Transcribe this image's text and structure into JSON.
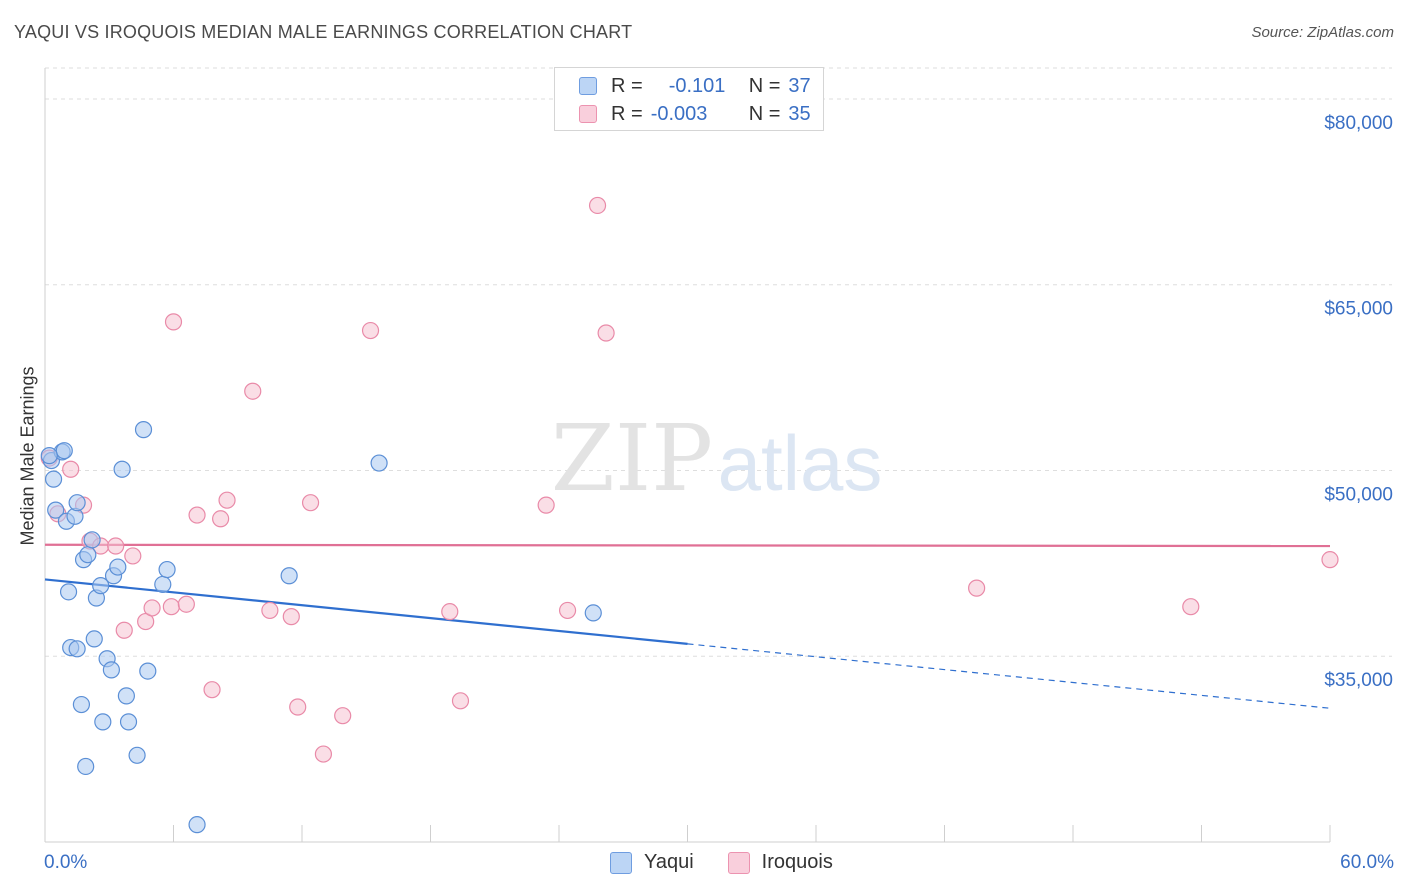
{
  "title": "YAQUI VS IROQUOIS MEDIAN MALE EARNINGS CORRELATION CHART",
  "source": "Source: ZipAtlas.com",
  "watermark": {
    "zip": "ZIP",
    "atlas": "atlas"
  },
  "legend": {
    "r_label": "R =",
    "n_label": "N =",
    "yaqui": {
      "r": "-0.101",
      "n": "37"
    },
    "iroquois": {
      "r": "-0.003",
      "n": "35"
    }
  },
  "bottom_legend": {
    "yaqui": "Yaqui",
    "iroquois": "Iroquois"
  },
  "colors": {
    "yaqui_fill": "#a9c8f0",
    "yaqui_stroke": "#5b8fd6",
    "yaqui_line": "#2f6fcf",
    "iroquois_fill": "#f6c2d2",
    "iroquois_stroke": "#e98aa8",
    "iroquois_line": "#e07095",
    "axis_text": "#3a6fc4"
  },
  "chart_data": {
    "type": "scatter",
    "title": "YAQUI VS IROQUOIS MEDIAN MALE EARNINGS CORRELATION CHART",
    "xlabel": "",
    "ylabel": "Median Male Earnings",
    "xlim": [
      0,
      60
    ],
    "ylim": [
      20000,
      82500
    ],
    "x_tick_labels": [
      "0.0%",
      "60.0%"
    ],
    "y_ticks": [
      35000,
      50000,
      65000,
      80000
    ],
    "y_tick_labels": [
      "$35,000",
      "$50,000",
      "$65,000",
      "$80,000"
    ],
    "grid": true,
    "series": [
      {
        "name": "Yaqui",
        "points": [
          [
            0.3,
            50800
          ],
          [
            0.4,
            49300
          ],
          [
            0.5,
            46800
          ],
          [
            0.8,
            51500
          ],
          [
            0.9,
            51600
          ],
          [
            1.0,
            45900
          ],
          [
            1.1,
            40200
          ],
          [
            1.2,
            35700
          ],
          [
            1.4,
            46300
          ],
          [
            1.5,
            35600
          ],
          [
            1.5,
            47400
          ],
          [
            1.7,
            31100
          ],
          [
            1.8,
            42800
          ],
          [
            1.9,
            26100
          ],
          [
            2.0,
            43200
          ],
          [
            2.2,
            44400
          ],
          [
            2.3,
            36400
          ],
          [
            2.4,
            39700
          ],
          [
            2.6,
            40700
          ],
          [
            2.7,
            29700
          ],
          [
            2.9,
            34800
          ],
          [
            3.1,
            33900
          ],
          [
            3.2,
            41500
          ],
          [
            3.4,
            42200
          ],
          [
            3.6,
            50100
          ],
          [
            3.8,
            31800
          ],
          [
            3.9,
            29700
          ],
          [
            4.3,
            27000
          ],
          [
            4.6,
            53300
          ],
          [
            4.8,
            33800
          ],
          [
            5.5,
            40800
          ],
          [
            5.7,
            42000
          ],
          [
            7.1,
            21400
          ],
          [
            11.4,
            41500
          ],
          [
            15.6,
            50600
          ],
          [
            25.6,
            38500
          ],
          [
            0.2,
            51200
          ]
        ],
        "trend": {
          "x": [
            0,
            30
          ],
          "y": [
            41200,
            36000
          ],
          "dashed_to": [
            60,
            30800
          ]
        }
      },
      {
        "name": "Iroquois",
        "points": [
          [
            0.2,
            51000
          ],
          [
            0.6,
            46500
          ],
          [
            1.2,
            50100
          ],
          [
            1.8,
            47200
          ],
          [
            2.1,
            44300
          ],
          [
            2.6,
            43900
          ],
          [
            3.3,
            43900
          ],
          [
            3.7,
            37100
          ],
          [
            4.1,
            43100
          ],
          [
            4.7,
            37800
          ],
          [
            5.0,
            38900
          ],
          [
            5.9,
            39000
          ],
          [
            6.0,
            62000
          ],
          [
            6.6,
            39200
          ],
          [
            7.1,
            46400
          ],
          [
            7.8,
            32300
          ],
          [
            8.2,
            46100
          ],
          [
            8.5,
            47600
          ],
          [
            9.7,
            56400
          ],
          [
            10.5,
            38700
          ],
          [
            11.5,
            38200
          ],
          [
            11.8,
            30900
          ],
          [
            12.4,
            47400
          ],
          [
            13.0,
            27100
          ],
          [
            13.9,
            30200
          ],
          [
            15.2,
            61300
          ],
          [
            18.9,
            38600
          ],
          [
            19.4,
            31400
          ],
          [
            23.4,
            47200
          ],
          [
            24.4,
            38700
          ],
          [
            25.8,
            71400
          ],
          [
            26.2,
            61100
          ],
          [
            43.5,
            40500
          ],
          [
            53.5,
            39000
          ],
          [
            60.0,
            42800
          ]
        ],
        "trend": {
          "x": [
            0,
            60
          ],
          "y": [
            44000,
            43900
          ]
        }
      }
    ]
  }
}
